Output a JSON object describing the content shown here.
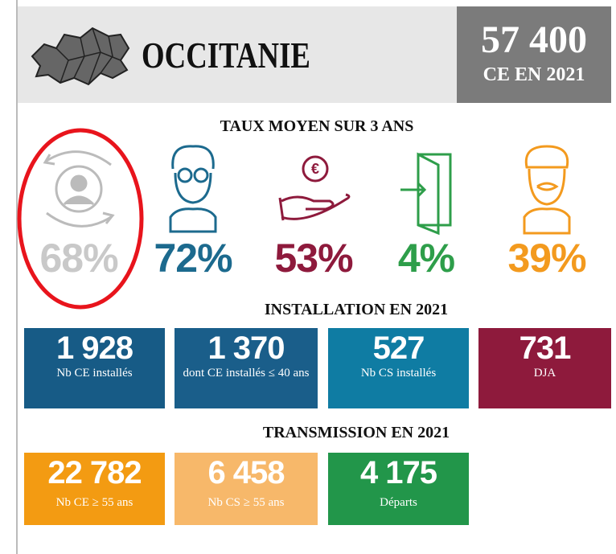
{
  "header": {
    "region": "OCCITANIE",
    "total": "57 400",
    "total_label": "CE EN 2021"
  },
  "rates": {
    "title": "TAUX MOYEN SUR 3 ANS",
    "items": [
      "68%",
      "72%",
      "53%",
      "4%",
      "39%"
    ]
  },
  "installation": {
    "title": "INSTALLATION EN 2021",
    "boxes": [
      {
        "value": "1 928",
        "label": "Nb CE installés"
      },
      {
        "value": "1 370",
        "label": "dont CE installés ≤ 40 ans"
      },
      {
        "value": "527",
        "label": "Nb CS installés"
      },
      {
        "value": "731",
        "label": "DJA"
      }
    ]
  },
  "transmission": {
    "title": "TRANSMISSION EN 2021",
    "boxes": [
      {
        "value": "22 782",
        "label": "Nb CE ≥ 55 ans"
      },
      {
        "value": "6 458",
        "label": "Nb CS ≥ 55 ans"
      },
      {
        "value": "4 175",
        "label": "Départs"
      }
    ]
  }
}
